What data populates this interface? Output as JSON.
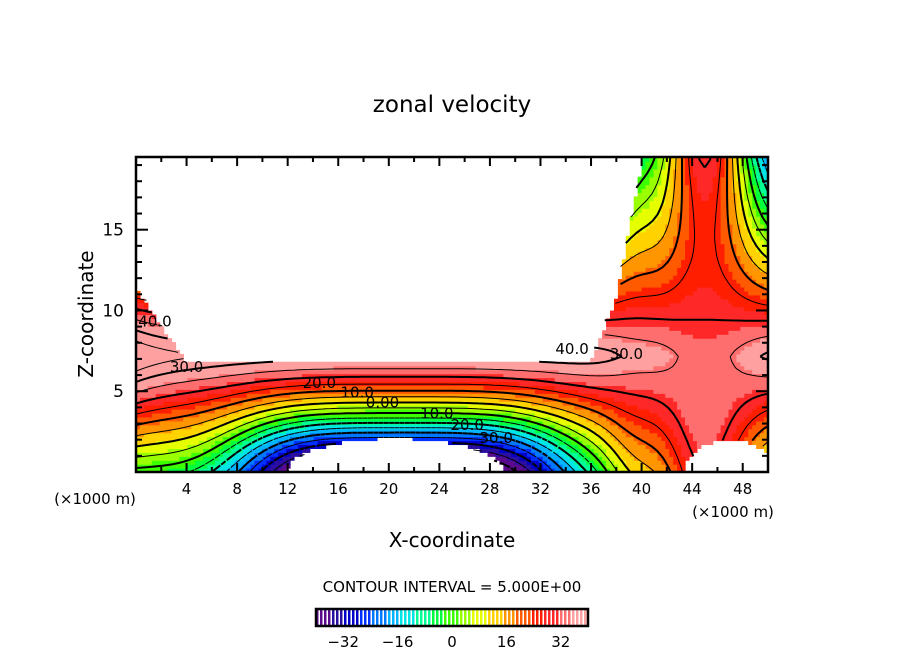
{
  "chart_data": {
    "type": "heatmap",
    "subtype": "filled-contour",
    "title": "zonal velocity",
    "xlabel": "X-coordinate",
    "ylabel": "Z-coordinate",
    "x_unit_label": "(×1000 m)",
    "z_unit_label": "(×1000 m)",
    "xlim": [
      0,
      50
    ],
    "ylim": [
      0,
      19.5
    ],
    "x_ticks": [
      4,
      8,
      12,
      16,
      20,
      24,
      28,
      32,
      36,
      40,
      44,
      48
    ],
    "x_tick_labels": [
      "4",
      "8",
      "12",
      "16",
      "20",
      "24",
      "28",
      "32",
      "36",
      "40",
      "44",
      "48"
    ],
    "y_ticks": [
      5,
      10,
      15
    ],
    "y_tick_labels": [
      "5",
      "10",
      "15"
    ],
    "contour_interval_text": "CONTOUR INTERVAL = 5.000E+00",
    "contour_interval": 5,
    "colorbar": {
      "range": [
        -40,
        40
      ],
      "tick_values": [
        -32,
        -16,
        0,
        16,
        32
      ],
      "tick_labels": [
        "−32",
        "−16",
        "0",
        "16",
        "32"
      ],
      "colors": [
        "#5a0a8c",
        "#2a0fa0",
        "#0000c8",
        "#0030ff",
        "#0078ff",
        "#00b4ff",
        "#00e6e6",
        "#00ff96",
        "#00ff3c",
        "#3cff00",
        "#9aff00",
        "#e6ff00",
        "#ffd200",
        "#ff9600",
        "#ff5a00",
        "#ff1e00",
        "#ff2828",
        "#ff6e6e",
        "#ffa0a0"
      ]
    },
    "contour_labels": [
      {
        "text": "40.0",
        "x": 1.5,
        "z": 9.0
      },
      {
        "text": "30.0",
        "x": 4.0,
        "z": 6.2
      },
      {
        "text": "20.0",
        "x": 14.5,
        "z": 5.2
      },
      {
        "text": "10.0",
        "x": 17.5,
        "z": 4.6
      },
      {
        "text": "0.00",
        "x": 19.5,
        "z": 4.0
      },
      {
        "text": "10.0",
        "x": 23.8,
        "z": 3.3
      },
      {
        "text": "20.0",
        "x": 26.2,
        "z": 2.6
      },
      {
        "text": "30.0",
        "x": 28.5,
        "z": 1.8
      },
      {
        "text": "40.0",
        "x": 34.5,
        "z": 7.3
      },
      {
        "text": "30.0",
        "x": 38.8,
        "z": 7.0
      }
    ]
  }
}
